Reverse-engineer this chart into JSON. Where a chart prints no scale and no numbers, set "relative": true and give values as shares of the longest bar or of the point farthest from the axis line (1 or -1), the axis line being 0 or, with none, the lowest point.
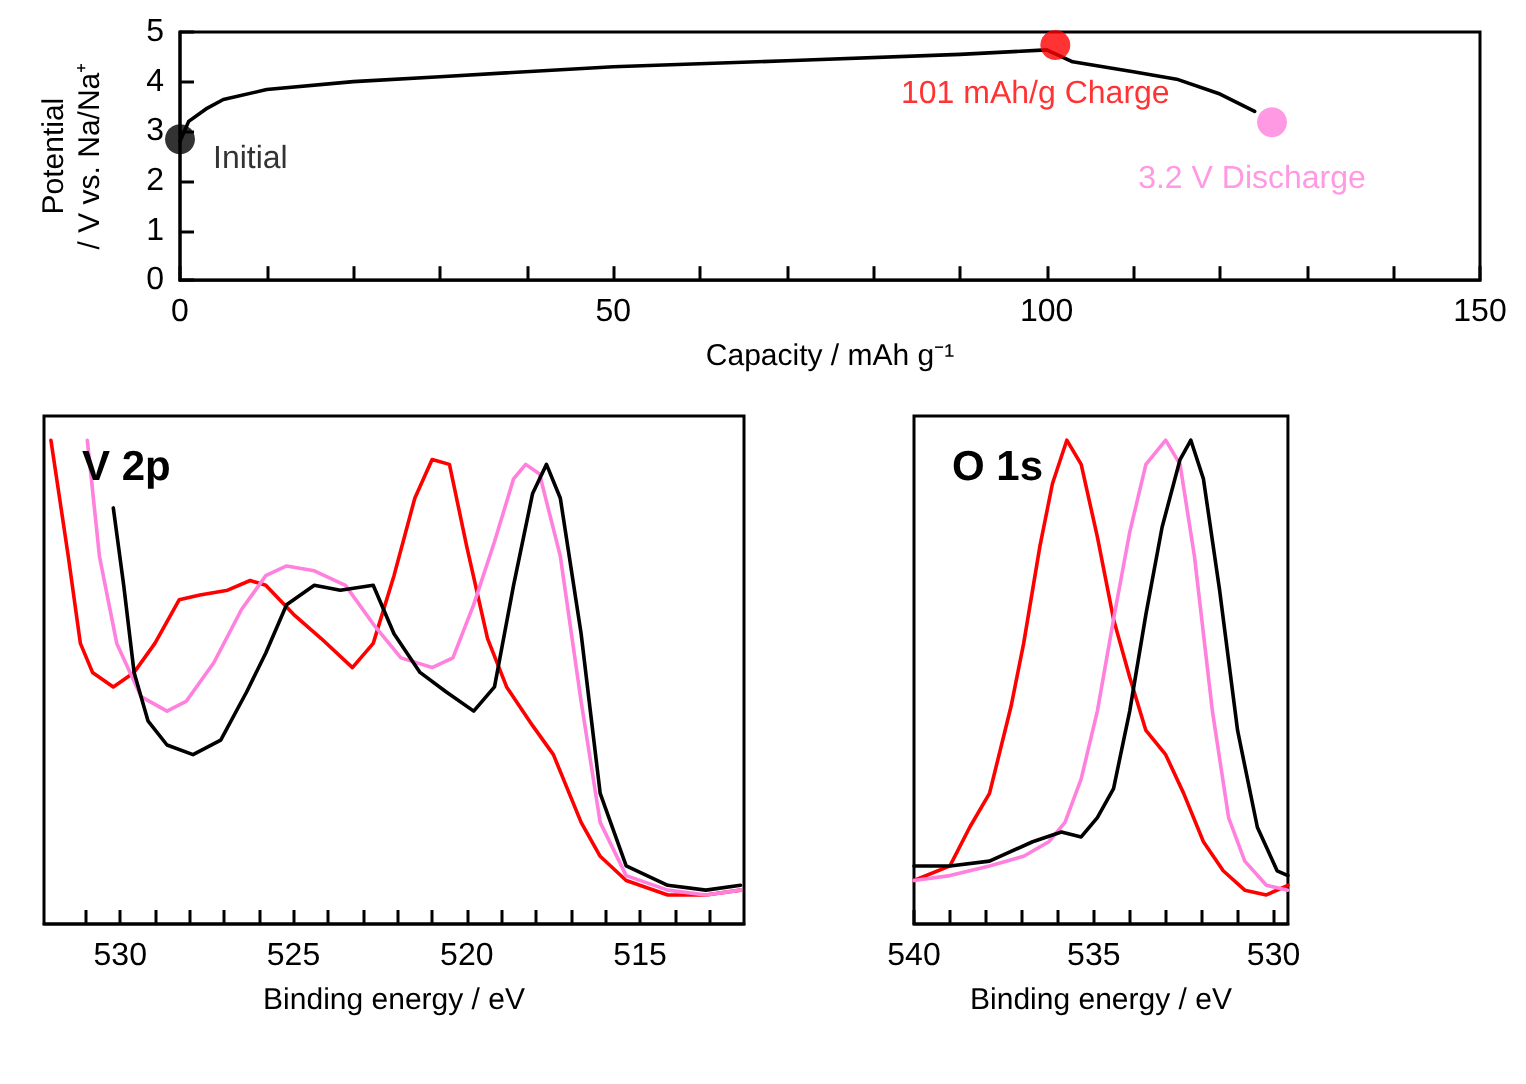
{
  "chart_data": [
    {
      "type": "line",
      "xlabel": "Capacity / mAh g⁻¹",
      "ylabel": "Potential\n/ V vs. Na/Na⁺",
      "xlim": [
        0,
        150
      ],
      "ylim": [
        0,
        5
      ],
      "xticks": [
        0,
        {
          "value": 10,
          "label": null
        },
        {
          "value": 20,
          "label": null
        },
        {
          "value": 30,
          "label": null
        },
        {
          "value": 40,
          "label": null
        },
        50,
        {
          "value": 60,
          "label": null
        },
        {
          "value": 70,
          "label": null
        },
        {
          "value": 80,
          "label": null
        },
        {
          "value": 90,
          "label": null
        },
        100,
        {
          "value": 110,
          "label": null
        },
        {
          "value": 120,
          "label": null
        },
        {
          "value": 130,
          "label": null
        },
        {
          "value": 140,
          "label": null
        },
        150
      ],
      "yticks": [
        0,
        1,
        2,
        3,
        4,
        5
      ],
      "grid": false,
      "legend": false,
      "series": [
        {
          "color": "#000000",
          "marker": "none",
          "x": [
            0,
            1,
            3,
            5,
            10,
            20,
            30,
            50,
            70,
            90,
            100,
            103,
            110,
            115,
            120,
            124
          ],
          "values": [
            2.8,
            3.2,
            3.45,
            3.64,
            3.84,
            4.0,
            4.1,
            4.3,
            4.42,
            4.55,
            4.64,
            4.4,
            4.2,
            4.05,
            3.75,
            3.4
          ]
        },
        {
          "type": "scatter",
          "name": "Initial",
          "color": "#000000",
          "marker": "circle",
          "x": [
            0
          ],
          "values": [
            2.84
          ]
        },
        {
          "type": "scatter",
          "name": "101 mAh/g Charge",
          "color": "#ff0000",
          "marker": "circle",
          "x": [
            101
          ],
          "values": [
            4.74
          ]
        },
        {
          "type": "scatter",
          "name": "3.2 V Discharge",
          "color": "#ff80dd",
          "marker": "circle",
          "x": [
            126
          ],
          "values": [
            3.18
          ]
        }
      ]
    },
    {
      "type": "line",
      "title": "V 2p",
      "xlabel": "Binding energy / eV",
      "relative": true,
      "tick_labels": "x",
      "grid": false,
      "legend": false,
      "marker": "none",
      "xlim": [
        532.2,
        512
      ],
      "xticks": [
        {
          "value": 531,
          "label": null
        },
        530,
        {
          "value": 529,
          "label": null
        },
        {
          "value": 528,
          "label": null
        },
        {
          "value": 527,
          "label": null
        },
        {
          "value": 526,
          "label": null
        },
        525,
        {
          "value": 524,
          "label": null
        },
        {
          "value": 523,
          "label": null
        },
        {
          "value": 522,
          "label": null
        },
        {
          "value": 521,
          "label": null
        },
        520,
        {
          "value": 519,
          "label": null
        },
        {
          "value": 518,
          "label": null
        },
        {
          "value": 517,
          "label": null
        },
        {
          "value": 516,
          "label": null
        },
        515,
        {
          "value": 514,
          "label": null
        },
        {
          "value": 513,
          "label": null
        }
      ],
      "series": [
        {
          "color": "#ff0000",
          "x": [
            532.0,
            531.5,
            531.15,
            530.8,
            530.2,
            529.6,
            529.0,
            528.3,
            527.7,
            526.9,
            526.25,
            525.8,
            525.0,
            524.2,
            523.3,
            522.7,
            522.1,
            521.5,
            521.0,
            520.5,
            520.0,
            519.4,
            518.85,
            518.1,
            517.5,
            516.7,
            516.15,
            515.4,
            514.2,
            513.1,
            512.1
          ],
          "values": [
            1.0,
            0.76,
            0.58,
            0.52,
            0.49,
            0.52,
            0.58,
            0.67,
            0.68,
            0.69,
            0.71,
            0.7,
            0.64,
            0.59,
            0.53,
            0.58,
            0.72,
            0.88,
            0.96,
            0.95,
            0.78,
            0.59,
            0.49,
            0.41,
            0.35,
            0.21,
            0.14,
            0.09,
            0.06,
            0.06,
            0.07
          ]
        },
        {
          "color": "#ff80dd",
          "x": [
            530.95,
            530.6,
            530.1,
            529.4,
            528.65,
            528.1,
            527.3,
            526.5,
            525.8,
            525.2,
            524.4,
            523.5,
            522.7,
            521.9,
            521.0,
            520.4,
            519.8,
            519.2,
            518.65,
            518.3,
            517.9,
            517.3,
            516.7,
            516.15,
            515.4,
            514.2,
            513.1,
            512.1
          ],
          "values": [
            1.0,
            0.76,
            0.58,
            0.47,
            0.44,
            0.46,
            0.54,
            0.65,
            0.72,
            0.74,
            0.73,
            0.7,
            0.62,
            0.55,
            0.53,
            0.55,
            0.66,
            0.79,
            0.92,
            0.95,
            0.93,
            0.76,
            0.46,
            0.21,
            0.1,
            0.07,
            0.06,
            0.07
          ]
        },
        {
          "color": "#000000",
          "x": [
            530.2,
            529.9,
            529.6,
            529.2,
            528.65,
            527.9,
            527.1,
            526.35,
            525.8,
            525.2,
            524.4,
            523.65,
            522.7,
            522.1,
            521.35,
            520.6,
            519.8,
            519.2,
            518.65,
            518.1,
            517.7,
            517.3,
            516.7,
            516.15,
            515.4,
            514.2,
            513.1,
            512.1
          ],
          "values": [
            0.86,
            0.7,
            0.52,
            0.42,
            0.37,
            0.35,
            0.38,
            0.48,
            0.56,
            0.66,
            0.7,
            0.69,
            0.7,
            0.6,
            0.52,
            0.48,
            0.44,
            0.49,
            0.7,
            0.89,
            0.95,
            0.88,
            0.6,
            0.27,
            0.12,
            0.08,
            0.07,
            0.08
          ]
        }
      ]
    },
    {
      "type": "line",
      "title": "O 1s",
      "xlabel": "Binding energy / eV",
      "relative": true,
      "tick_labels": "x",
      "grid": false,
      "legend": false,
      "marker": "none",
      "xlim": [
        540,
        529.6
      ],
      "xticks": [
        540,
        {
          "value": 539,
          "label": null
        },
        {
          "value": 538,
          "label": null
        },
        {
          "value": 537,
          "label": null
        },
        {
          "value": 536,
          "label": null
        },
        535,
        {
          "value": 534,
          "label": null
        },
        {
          "value": 533,
          "label": null
        },
        {
          "value": 532,
          "label": null
        },
        {
          "value": 531,
          "label": null
        },
        530
      ],
      "series": [
        {
          "color": "#ff0000",
          "x": [
            540,
            539.0,
            538.45,
            537.9,
            537.3,
            536.95,
            536.5,
            536.15,
            535.75,
            535.35,
            534.9,
            534.45,
            534.0,
            533.55,
            533.0,
            532.5,
            531.95,
            531.4,
            530.8,
            530.2,
            529.6
          ],
          "values": [
            0.09,
            0.12,
            0.2,
            0.27,
            0.45,
            0.58,
            0.78,
            0.91,
            1.0,
            0.95,
            0.8,
            0.63,
            0.51,
            0.4,
            0.35,
            0.27,
            0.17,
            0.11,
            0.07,
            0.06,
            0.08
          ]
        },
        {
          "color": "#ff80dd",
          "x": [
            540,
            539.0,
            537.9,
            536.95,
            536.25,
            535.8,
            535.35,
            534.9,
            534.45,
            534.0,
            533.55,
            533.0,
            532.6,
            532.2,
            531.7,
            531.25,
            530.8,
            530.2,
            529.6
          ],
          "values": [
            0.09,
            0.1,
            0.12,
            0.14,
            0.17,
            0.21,
            0.3,
            0.44,
            0.63,
            0.81,
            0.95,
            1.0,
            0.95,
            0.76,
            0.44,
            0.22,
            0.13,
            0.08,
            0.07
          ]
        },
        {
          "color": "#000000",
          "x": [
            540,
            539.0,
            537.9,
            536.7,
            535.9,
            535.35,
            534.9,
            534.45,
            534.0,
            533.55,
            533.1,
            532.6,
            532.3,
            531.95,
            531.5,
            531.0,
            530.45,
            529.9,
            529.6
          ],
          "values": [
            0.12,
            0.12,
            0.13,
            0.17,
            0.19,
            0.18,
            0.22,
            0.28,
            0.44,
            0.64,
            0.82,
            0.96,
            1.0,
            0.92,
            0.69,
            0.4,
            0.2,
            0.11,
            0.1
          ]
        }
      ]
    }
  ]
}
